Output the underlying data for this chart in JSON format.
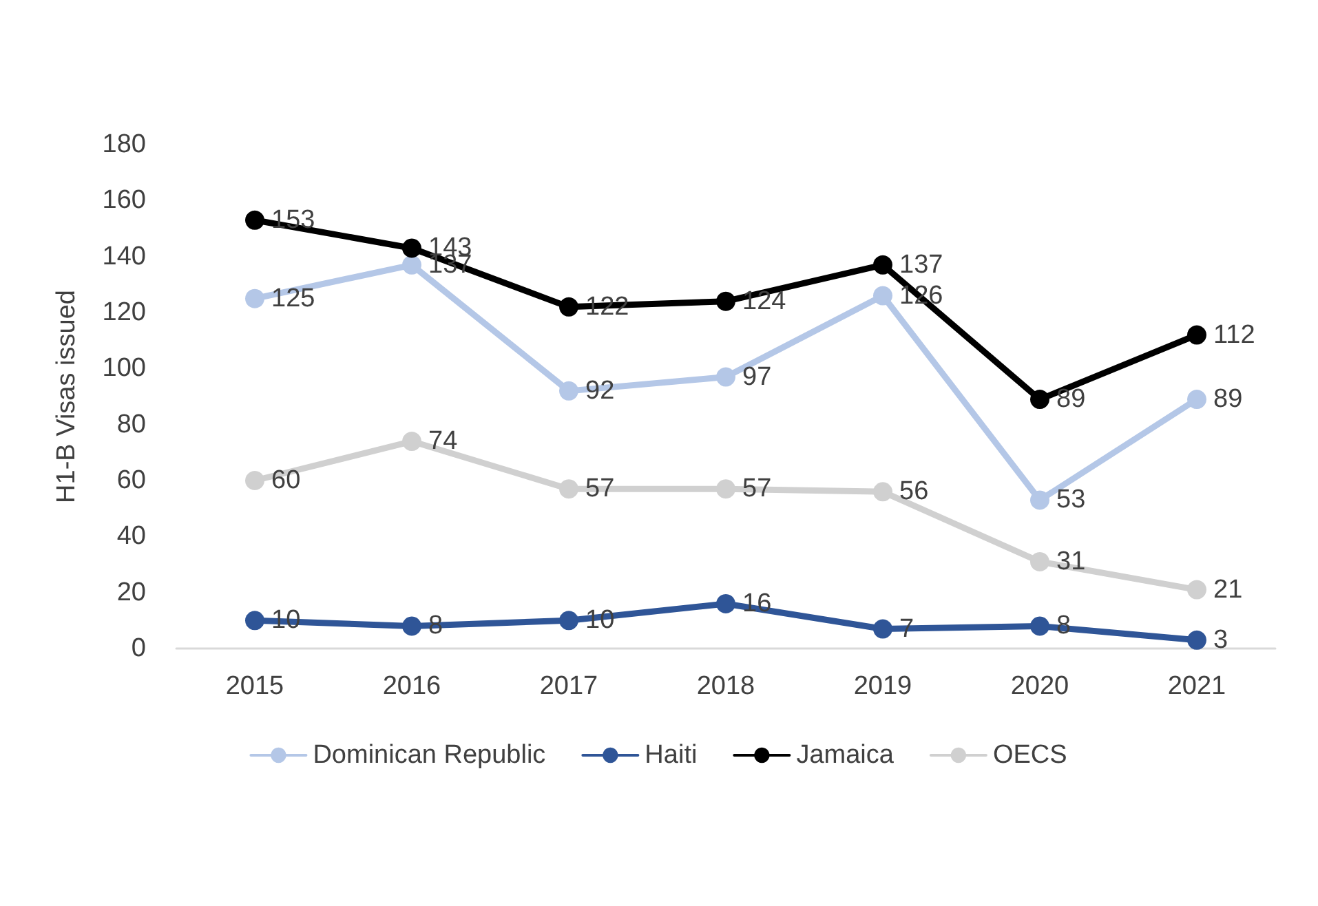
{
  "chart_data": {
    "type": "line",
    "ylabel": "H1-B Visas issued",
    "categories": [
      "2015",
      "2016",
      "2017",
      "2018",
      "2019",
      "2020",
      "2021"
    ],
    "series": [
      {
        "name": "Dominican Republic",
        "color": "#b4c7e7",
        "values": [
          125,
          137,
          92,
          97,
          126,
          53,
          89
        ]
      },
      {
        "name": "Haiti",
        "color": "#2f5597",
        "values": [
          10,
          8,
          10,
          16,
          7,
          8,
          3
        ]
      },
      {
        "name": "Jamaica",
        "color": "#000000",
        "values": [
          153,
          143,
          122,
          124,
          137,
          89,
          112
        ]
      },
      {
        "name": "OECS",
        "color": "#d0d0d0",
        "values": [
          60,
          74,
          57,
          57,
          56,
          31,
          21
        ]
      }
    ],
    "ylim": [
      0,
      180
    ],
    "yticks": [
      0,
      20,
      40,
      60,
      80,
      100,
      120,
      140,
      160,
      180
    ],
    "grid": false,
    "legend": "bottom",
    "marker": "circle",
    "line_style": "solid",
    "data_labels": true
  }
}
